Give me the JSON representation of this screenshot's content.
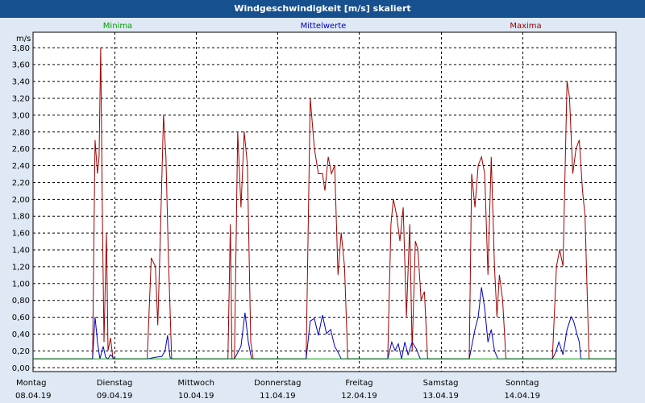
{
  "window": {
    "title": "Windgeschwindigkeit [m/s] skaliert"
  },
  "chart_data": {
    "type": "line",
    "title": "Windgeschwindigkeit [m/s] skaliert",
    "ylabel": "m/s",
    "ylim": [
      -0.05,
      3.98
    ],
    "yticks": [
      "0,00",
      "0,20",
      "0,40",
      "0,60",
      "0,80",
      "1,00",
      "1,20",
      "1,40",
      "1,60",
      "1,80",
      "2,00",
      "2,20",
      "2,40",
      "2,60",
      "2,80",
      "3,00",
      "3,20",
      "3,40",
      "3,60",
      "3,80"
    ],
    "xlim": [
      0,
      7.15
    ],
    "grid": true,
    "legend": [
      "Minima",
      "Mittelwerte",
      "Maxima"
    ],
    "days": [
      {
        "name": "Montag",
        "date": "08.04.19"
      },
      {
        "name": "Dienstag",
        "date": "09.04.19"
      },
      {
        "name": "Mittwoch",
        "date": "10.04.19"
      },
      {
        "name": "Donnerstag",
        "date": "11.04.19"
      },
      {
        "name": "Freitag",
        "date": "12.04.19"
      },
      {
        "name": "Samstag",
        "date": "13.04.19"
      },
      {
        "name": "Sonntag",
        "date": "14.04.19"
      }
    ],
    "series": [
      {
        "name": "Minima",
        "color": "#00a000",
        "points": [
          [
            0,
            0.1
          ],
          [
            7.15,
            0.1
          ]
        ]
      },
      {
        "name": "Mittelwerte",
        "color": "#0000c0",
        "points": [
          [
            0,
            0.1
          ],
          [
            0.73,
            0.1
          ],
          [
            0.76,
            0.6
          ],
          [
            0.79,
            0.3
          ],
          [
            0.82,
            0.1
          ],
          [
            0.86,
            0.25
          ],
          [
            0.89,
            0.12
          ],
          [
            0.92,
            0.1
          ],
          [
            0.95,
            0.15
          ],
          [
            1.0,
            0.1
          ],
          [
            1.4,
            0.1
          ],
          [
            1.5,
            0.12
          ],
          [
            1.58,
            0.13
          ],
          [
            1.62,
            0.2
          ],
          [
            1.65,
            0.38
          ],
          [
            1.68,
            0.12
          ],
          [
            1.7,
            0.1
          ],
          [
            2.39,
            0.1
          ],
          [
            2.47,
            0.1
          ],
          [
            2.55,
            0.25
          ],
          [
            2.6,
            0.65
          ],
          [
            2.64,
            0.3
          ],
          [
            2.68,
            0.1
          ],
          [
            3.35,
            0.1
          ],
          [
            3.4,
            0.55
          ],
          [
            3.45,
            0.58
          ],
          [
            3.5,
            0.38
          ],
          [
            3.55,
            0.62
          ],
          [
            3.6,
            0.4
          ],
          [
            3.65,
            0.45
          ],
          [
            3.7,
            0.25
          ],
          [
            3.74,
            0.18
          ],
          [
            3.78,
            0.1
          ],
          [
            4.35,
            0.1
          ],
          [
            4.4,
            0.3
          ],
          [
            4.44,
            0.2
          ],
          [
            4.48,
            0.28
          ],
          [
            4.52,
            0.1
          ],
          [
            4.56,
            0.3
          ],
          [
            4.6,
            0.15
          ],
          [
            4.65,
            0.3
          ],
          [
            4.7,
            0.22
          ],
          [
            4.75,
            0.1
          ],
          [
            5.35,
            0.1
          ],
          [
            5.42,
            0.45
          ],
          [
            5.46,
            0.6
          ],
          [
            5.5,
            0.95
          ],
          [
            5.54,
            0.7
          ],
          [
            5.58,
            0.3
          ],
          [
            5.62,
            0.45
          ],
          [
            5.66,
            0.2
          ],
          [
            5.7,
            0.1
          ],
          [
            6.37,
            0.1
          ],
          [
            6.41,
            0.18
          ],
          [
            6.45,
            0.3
          ],
          [
            6.5,
            0.15
          ],
          [
            6.55,
            0.45
          ],
          [
            6.6,
            0.6
          ],
          [
            6.63,
            0.55
          ],
          [
            6.67,
            0.4
          ],
          [
            6.7,
            0.3
          ],
          [
            6.72,
            0.1
          ],
          [
            7.15,
            0.1
          ]
        ]
      },
      {
        "name": "Maxima",
        "color": "#a00000",
        "points": [
          [
            0,
            0.1
          ],
          [
            0.73,
            0.1
          ],
          [
            0.76,
            2.7
          ],
          [
            0.79,
            2.3
          ],
          [
            0.81,
            2.5
          ],
          [
            0.83,
            3.8
          ],
          [
            0.85,
            1.8
          ],
          [
            0.87,
            0.3
          ],
          [
            0.9,
            1.6
          ],
          [
            0.92,
            0.2
          ],
          [
            0.95,
            0.35
          ],
          [
            0.98,
            0.1
          ],
          [
            1.4,
            0.1
          ],
          [
            1.45,
            1.3
          ],
          [
            1.5,
            1.2
          ],
          [
            1.53,
            0.5
          ],
          [
            1.56,
            1.5
          ],
          [
            1.6,
            3.0
          ],
          [
            1.63,
            2.5
          ],
          [
            1.66,
            1.3
          ],
          [
            1.7,
            0.1
          ],
          [
            2.39,
            0.1
          ],
          [
            2.42,
            1.7
          ],
          [
            2.44,
            0.1
          ],
          [
            2.47,
            0.1
          ],
          [
            2.51,
            2.8
          ],
          [
            2.55,
            1.9
          ],
          [
            2.59,
            2.8
          ],
          [
            2.63,
            2.4
          ],
          [
            2.67,
            0.3
          ],
          [
            2.7,
            0.1
          ],
          [
            3.35,
            0.1
          ],
          [
            3.4,
            3.2
          ],
          [
            3.45,
            2.6
          ],
          [
            3.5,
            2.3
          ],
          [
            3.55,
            2.3
          ],
          [
            3.58,
            2.1
          ],
          [
            3.62,
            2.5
          ],
          [
            3.66,
            2.3
          ],
          [
            3.7,
            2.4
          ],
          [
            3.74,
            1.1
          ],
          [
            3.78,
            1.6
          ],
          [
            3.82,
            1.2
          ],
          [
            3.86,
            0.1
          ],
          [
            4.35,
            0.1
          ],
          [
            4.39,
            1.7
          ],
          [
            4.42,
            2.0
          ],
          [
            4.46,
            1.8
          ],
          [
            4.5,
            1.5
          ],
          [
            4.54,
            1.9
          ],
          [
            4.58,
            0.6
          ],
          [
            4.62,
            1.7
          ],
          [
            4.65,
            0.2
          ],
          [
            4.69,
            1.5
          ],
          [
            4.72,
            1.4
          ],
          [
            4.76,
            0.8
          ],
          [
            4.8,
            0.9
          ],
          [
            4.84,
            0.1
          ],
          [
            5.35,
            0.1
          ],
          [
            5.38,
            2.3
          ],
          [
            5.42,
            1.9
          ],
          [
            5.46,
            2.4
          ],
          [
            5.5,
            2.5
          ],
          [
            5.54,
            2.3
          ],
          [
            5.58,
            1.1
          ],
          [
            5.62,
            2.5
          ],
          [
            5.66,
            1.2
          ],
          [
            5.69,
            0.6
          ],
          [
            5.72,
            1.1
          ],
          [
            5.76,
            0.8
          ],
          [
            5.8,
            0.1
          ],
          [
            6.37,
            0.1
          ],
          [
            6.42,
            1.2
          ],
          [
            6.46,
            1.4
          ],
          [
            6.5,
            1.2
          ],
          [
            6.55,
            3.4
          ],
          [
            6.58,
            3.2
          ],
          [
            6.62,
            2.3
          ],
          [
            6.66,
            2.6
          ],
          [
            6.7,
            2.7
          ],
          [
            6.74,
            2.1
          ],
          [
            6.77,
            1.8
          ],
          [
            6.82,
            0.1
          ],
          [
            7.15,
            0.1
          ]
        ]
      }
    ]
  }
}
